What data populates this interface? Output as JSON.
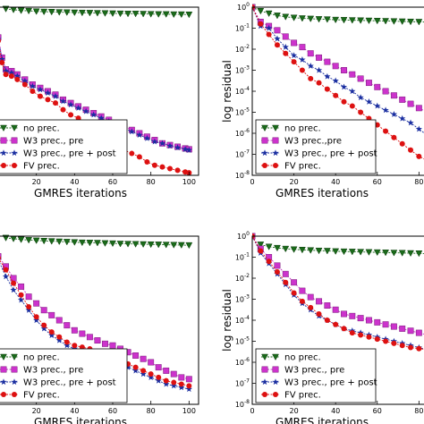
{
  "chart_data": [
    {
      "type": "line",
      "log_y": false,
      "xlabel": "GMRES iterations",
      "ylabel": "",
      "x_ticks": [
        "20",
        "40",
        "60",
        "80",
        "100"
      ],
      "y_ticks": [],
      "xlim": [
        0,
        105
      ],
      "ylim": [
        0,
        1
      ],
      "grid": false,
      "legend_position": "lower-left",
      "series": [
        {
          "name": "no prec.",
          "color": "#1a6b1a",
          "marker": "triangle-down",
          "x": [
            4,
            8,
            12,
            16,
            20,
            24,
            28,
            32,
            36,
            40,
            44,
            48,
            52,
            56,
            60,
            64,
            68,
            72,
            76,
            80,
            84,
            88,
            92,
            96,
            100
          ],
          "y": [
            0.99,
            0.985,
            0.98,
            0.978,
            0.975,
            0.973,
            0.972,
            0.97,
            0.969,
            0.968,
            0.967,
            0.966,
            0.965,
            0.964,
            0.963,
            0.962,
            0.961,
            0.961,
            0.96,
            0.959,
            0.958,
            0.958,
            0.957,
            0.957,
            0.956
          ]
        },
        {
          "name": "W3 prec., pre",
          "color": "#cc33cc",
          "marker": "square",
          "x": [
            0,
            2,
            4,
            7,
            10,
            14,
            18,
            22,
            26,
            30,
            34,
            38,
            42,
            46,
            50,
            54,
            58,
            62,
            66,
            70,
            74,
            78,
            82,
            86,
            90,
            94,
            98,
            100
          ],
          "y": [
            0.82,
            0.7,
            0.63,
            0.62,
            0.6,
            0.57,
            0.54,
            0.52,
            0.5,
            0.48,
            0.45,
            0.43,
            0.41,
            0.39,
            0.37,
            0.35,
            0.33,
            0.31,
            0.29,
            0.27,
            0.25,
            0.23,
            0.21,
            0.19,
            0.18,
            0.17,
            0.16,
            0.155
          ]
        },
        {
          "name": "W3 prec., pre + post",
          "color": "#1a2ea0",
          "marker": "star",
          "x": [
            0,
            2,
            4,
            7,
            10,
            14,
            18,
            22,
            26,
            30,
            34,
            38,
            42,
            46,
            50,
            54,
            58,
            62,
            66,
            70,
            74,
            78,
            82,
            86,
            90,
            94,
            98,
            100
          ],
          "y": [
            0.81,
            0.69,
            0.62,
            0.61,
            0.59,
            0.56,
            0.53,
            0.51,
            0.49,
            0.47,
            0.44,
            0.42,
            0.4,
            0.38,
            0.36,
            0.34,
            0.32,
            0.3,
            0.28,
            0.26,
            0.24,
            0.22,
            0.2,
            0.19,
            0.175,
            0.165,
            0.155,
            0.15
          ]
        },
        {
          "name": "FV prec.",
          "color": "#dd1111",
          "marker": "circle",
          "x": [
            0,
            2,
            4,
            7,
            10,
            14,
            18,
            22,
            26,
            30,
            34,
            38,
            42,
            46,
            50,
            54,
            58,
            62,
            66,
            70,
            74,
            78,
            82,
            86,
            90,
            94,
            98,
            100
          ],
          "y": [
            0.8,
            0.67,
            0.6,
            0.59,
            0.57,
            0.54,
            0.5,
            0.47,
            0.45,
            0.43,
            0.39,
            0.36,
            0.34,
            0.31,
            0.28,
            0.24,
            0.21,
            0.18,
            0.15,
            0.13,
            0.11,
            0.08,
            0.06,
            0.05,
            0.04,
            0.03,
            0.02,
            0.015
          ]
        }
      ]
    },
    {
      "type": "line",
      "log_y": true,
      "xlabel": "GMRES iterations",
      "ylabel": "log residual",
      "x_ticks": [
        "0",
        "20",
        "40",
        "60",
        "80"
      ],
      "y_ticks": [
        "10^-8",
        "10^-7",
        "10^-6",
        "10^-5",
        "10^-4",
        "10^-3",
        "10^-2",
        "10^-1",
        "10^0"
      ],
      "xlim": [
        0,
        85
      ],
      "ylim_exp": [
        -8,
        0
      ],
      "grid": false,
      "legend_position": "lower-left",
      "series": [
        {
          "name": "no prec.",
          "color": "#1a6b1a",
          "marker": "triangle-down",
          "x": [
            0,
            4,
            8,
            12,
            16,
            20,
            24,
            28,
            32,
            36,
            40,
            44,
            48,
            52,
            56,
            60,
            64,
            68,
            72,
            76,
            80,
            84
          ],
          "y_exp": [
            0,
            -0.18,
            -0.3,
            -0.4,
            -0.46,
            -0.5,
            -0.53,
            -0.55,
            -0.57,
            -0.58,
            -0.6,
            -0.61,
            -0.62,
            -0.63,
            -0.64,
            -0.65,
            -0.66,
            -0.67,
            -0.68,
            -0.69,
            -0.7,
            -0.71
          ]
        },
        {
          "name": "W3 prec.,pre",
          "color": "#cc33cc",
          "marker": "square",
          "x": [
            0,
            4,
            8,
            12,
            16,
            20,
            24,
            28,
            32,
            36,
            40,
            44,
            48,
            52,
            56,
            60,
            64,
            68,
            72,
            76,
            80,
            84
          ],
          "y_exp": [
            0,
            -0.7,
            -0.9,
            -1.1,
            -1.4,
            -1.7,
            -1.9,
            -2.2,
            -2.4,
            -2.6,
            -2.8,
            -3.0,
            -3.2,
            -3.4,
            -3.6,
            -3.8,
            -4.0,
            -4.2,
            -4.4,
            -4.6,
            -4.8,
            -5.0
          ]
        },
        {
          "name": "W3 prec., pre + post",
          "color": "#1a2ea0",
          "marker": "star",
          "x": [
            0,
            4,
            8,
            12,
            16,
            20,
            24,
            28,
            32,
            36,
            40,
            44,
            48,
            52,
            56,
            60,
            64,
            68,
            72,
            76,
            80,
            84
          ],
          "y_exp": [
            0,
            -0.9,
            -1.0,
            -1.5,
            -1.9,
            -2.3,
            -2.5,
            -2.8,
            -3.0,
            -3.3,
            -3.5,
            -3.8,
            -4.0,
            -4.3,
            -4.5,
            -4.7,
            -4.9,
            -5.1,
            -5.3,
            -5.5,
            -5.8,
            -6.1
          ]
        },
        {
          "name": "FV prec.",
          "color": "#dd1111",
          "marker": "circle",
          "x": [
            0,
            4,
            8,
            12,
            16,
            20,
            24,
            28,
            32,
            36,
            40,
            44,
            48,
            52,
            56,
            60,
            64,
            68,
            72,
            76,
            80,
            84
          ],
          "y_exp": [
            0,
            -0.8,
            -1.3,
            -1.8,
            -2.2,
            -2.6,
            -3.0,
            -3.4,
            -3.6,
            -3.9,
            -4.2,
            -4.5,
            -4.7,
            -5.0,
            -5.3,
            -5.6,
            -5.9,
            -6.2,
            -6.5,
            -6.8,
            -7.1,
            -7.3
          ]
        }
      ]
    },
    {
      "type": "line",
      "log_y": false,
      "xlabel": "GMRES iterations",
      "ylabel": "",
      "x_ticks": [
        "20",
        "40",
        "60",
        "80",
        "100"
      ],
      "y_ticks": [],
      "xlim": [
        0,
        105
      ],
      "ylim": [
        0,
        1
      ],
      "grid": false,
      "legend_position": "lower-left",
      "series": [
        {
          "name": "no prec.",
          "color": "#1a6b1a",
          "marker": "triangle-down",
          "x": [
            4,
            8,
            12,
            16,
            20,
            24,
            28,
            32,
            36,
            40,
            44,
            48,
            52,
            56,
            60,
            64,
            68,
            72,
            76,
            80,
            84,
            88,
            92,
            96,
            100
          ],
          "y": [
            0.99,
            0.985,
            0.98,
            0.977,
            0.974,
            0.972,
            0.97,
            0.968,
            0.966,
            0.964,
            0.962,
            0.961,
            0.96,
            0.958,
            0.957,
            0.955,
            0.954,
            0.953,
            0.952,
            0.951,
            0.95,
            0.949,
            0.948,
            0.947,
            0.946
          ]
        },
        {
          "name": "W3 prec., pre",
          "color": "#cc33cc",
          "marker": "square",
          "x": [
            0,
            4,
            8,
            12,
            16,
            20,
            24,
            28,
            32,
            36,
            40,
            44,
            48,
            52,
            56,
            60,
            64,
            68,
            72,
            76,
            80,
            84,
            88,
            92,
            96,
            100
          ],
          "y": [
            0.88,
            0.82,
            0.75,
            0.7,
            0.64,
            0.6,
            0.56,
            0.53,
            0.5,
            0.47,
            0.44,
            0.42,
            0.4,
            0.38,
            0.36,
            0.35,
            0.33,
            0.31,
            0.29,
            0.27,
            0.25,
            0.22,
            0.2,
            0.18,
            0.16,
            0.15
          ]
        },
        {
          "name": "W3 prec., pre + post",
          "color": "#1a2ea0",
          "marker": "star",
          "x": [
            0,
            4,
            8,
            12,
            16,
            20,
            24,
            28,
            32,
            36,
            40,
            44,
            48,
            52,
            56,
            60,
            64,
            68,
            72,
            76,
            80,
            84,
            88,
            92,
            96,
            100
          ],
          "y": [
            0.86,
            0.76,
            0.68,
            0.62,
            0.56,
            0.5,
            0.45,
            0.41,
            0.38,
            0.35,
            0.33,
            0.32,
            0.3,
            0.29,
            0.27,
            0.26,
            0.24,
            0.22,
            0.2,
            0.18,
            0.16,
            0.14,
            0.12,
            0.11,
            0.1,
            0.09
          ]
        },
        {
          "name": "FV prec.",
          "color": "#dd1111",
          "marker": "circle",
          "x": [
            0,
            4,
            8,
            12,
            16,
            20,
            24,
            28,
            32,
            36,
            40,
            44,
            48,
            52,
            56,
            60,
            64,
            68,
            72,
            76,
            80,
            84,
            88,
            92,
            96,
            100
          ],
          "y": [
            0.87,
            0.8,
            0.72,
            0.65,
            0.58,
            0.52,
            0.47,
            0.43,
            0.4,
            0.37,
            0.35,
            0.34,
            0.33,
            0.31,
            0.3,
            0.28,
            0.26,
            0.24,
            0.22,
            0.2,
            0.18,
            0.16,
            0.14,
            0.13,
            0.12,
            0.11
          ]
        }
      ]
    },
    {
      "type": "line",
      "log_y": true,
      "xlabel": "GMRES iterations",
      "ylabel": "log residual",
      "x_ticks": [
        "0",
        "20",
        "40",
        "60",
        "80"
      ],
      "y_ticks": [
        "10^-8",
        "10^-7",
        "10^-6",
        "10^-5",
        "10^-4",
        "10^-3",
        "10^-2",
        "10^-1",
        "10^0"
      ],
      "xlim": [
        0,
        85
      ],
      "ylim_exp": [
        -8,
        0
      ],
      "grid": false,
      "legend_position": "lower-left",
      "series": [
        {
          "name": "no prec.",
          "color": "#1a6b1a",
          "marker": "triangle-down",
          "x": [
            4,
            8,
            12,
            16,
            20,
            24,
            28,
            32,
            36,
            40,
            44,
            48,
            52,
            56,
            60,
            64,
            68,
            72,
            76,
            80,
            84
          ],
          "y_exp": [
            -0.4,
            -0.5,
            -0.56,
            -0.6,
            -0.63,
            -0.65,
            -0.67,
            -0.69,
            -0.7,
            -0.72,
            -0.73,
            -0.74,
            -0.75,
            -0.76,
            -0.77,
            -0.78,
            -0.79,
            -0.8,
            -0.81,
            -0.82,
            -0.83
          ]
        },
        {
          "name": "W3 prec., pre",
          "color": "#cc33cc",
          "marker": "square",
          "x": [
            0,
            4,
            8,
            12,
            16,
            20,
            24,
            28,
            32,
            36,
            40,
            44,
            48,
            52,
            56,
            60,
            64,
            68,
            72,
            76,
            80,
            84
          ],
          "y_exp": [
            0,
            -0.6,
            -1.0,
            -1.4,
            -1.8,
            -2.2,
            -2.6,
            -2.9,
            -3.1,
            -3.3,
            -3.5,
            -3.7,
            -3.8,
            -3.9,
            -4.0,
            -4.1,
            -4.2,
            -4.3,
            -4.4,
            -4.5,
            -4.6,
            -4.7
          ]
        },
        {
          "name": "W3 prec., pre + post",
          "color": "#1a2ea0",
          "marker": "star",
          "x": [
            0,
            4,
            8,
            12,
            16,
            20,
            24,
            28,
            32,
            36,
            40,
            44,
            48,
            52,
            56,
            60,
            64,
            68,
            72,
            76,
            80,
            84
          ],
          "y_exp": [
            0,
            -0.8,
            -1.3,
            -1.8,
            -2.3,
            -2.8,
            -3.2,
            -3.5,
            -3.8,
            -4.0,
            -4.2,
            -4.4,
            -4.5,
            -4.6,
            -4.7,
            -4.8,
            -4.9,
            -5.0,
            -5.1,
            -5.2,
            -5.3,
            -5.4
          ]
        },
        {
          "name": "FV prec.",
          "color": "#dd1111",
          "marker": "circle",
          "x": [
            0,
            4,
            8,
            12,
            16,
            20,
            24,
            28,
            32,
            36,
            40,
            44,
            48,
            52,
            56,
            60,
            64,
            68,
            72,
            76,
            80,
            84
          ],
          "y_exp": [
            0,
            -0.7,
            -1.2,
            -1.7,
            -2.2,
            -2.7,
            -3.1,
            -3.4,
            -3.7,
            -4.0,
            -4.2,
            -4.4,
            -4.6,
            -4.7,
            -4.8,
            -4.9,
            -5.0,
            -5.1,
            -5.2,
            -5.3,
            -5.35,
            -5.4
          ]
        }
      ]
    }
  ]
}
